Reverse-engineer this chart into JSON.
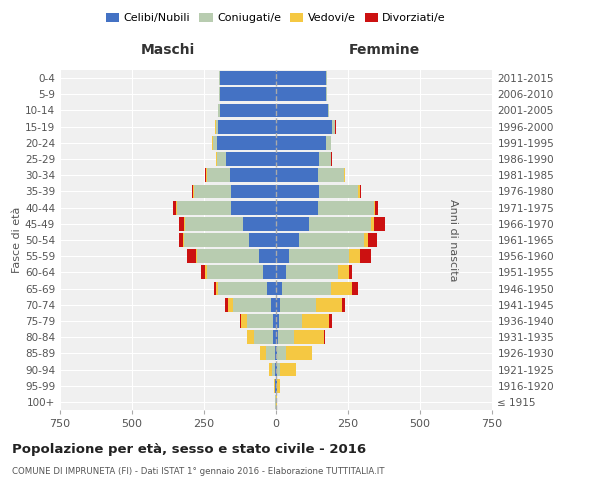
{
  "age_groups": [
    "100+",
    "95-99",
    "90-94",
    "85-89",
    "80-84",
    "75-79",
    "70-74",
    "65-69",
    "60-64",
    "55-59",
    "50-54",
    "45-49",
    "40-44",
    "35-39",
    "30-34",
    "25-29",
    "20-24",
    "15-19",
    "10-14",
    "5-9",
    "0-4"
  ],
  "birth_years": [
    "≤ 1915",
    "1916-1920",
    "1921-1925",
    "1926-1930",
    "1931-1935",
    "1936-1940",
    "1941-1945",
    "1946-1950",
    "1951-1955",
    "1956-1960",
    "1961-1965",
    "1966-1970",
    "1971-1975",
    "1976-1980",
    "1981-1985",
    "1986-1990",
    "1991-1995",
    "1996-2000",
    "2001-2005",
    "2006-2010",
    "2011-2015"
  ],
  "males": {
    "celibi": [
      1,
      2,
      3,
      5,
      10,
      12,
      18,
      30,
      45,
      60,
      95,
      115,
      155,
      155,
      160,
      175,
      205,
      200,
      195,
      195,
      195
    ],
    "coniugati": [
      1,
      3,
      10,
      30,
      65,
      90,
      130,
      170,
      195,
      215,
      225,
      200,
      190,
      130,
      80,
      30,
      15,
      10,
      5,
      3,
      2
    ],
    "vedovi": [
      0,
      2,
      10,
      20,
      25,
      18,
      20,
      10,
      5,
      3,
      2,
      3,
      2,
      2,
      2,
      2,
      1,
      1,
      0,
      0,
      0
    ],
    "divorziati": [
      0,
      0,
      1,
      1,
      2,
      5,
      8,
      5,
      15,
      30,
      15,
      18,
      10,
      5,
      5,
      2,
      1,
      1,
      0,
      0,
      0
    ]
  },
  "females": {
    "nubili": [
      1,
      2,
      5,
      5,
      8,
      10,
      15,
      20,
      35,
      45,
      80,
      115,
      145,
      150,
      145,
      150,
      175,
      195,
      180,
      175,
      175
    ],
    "coniugate": [
      0,
      2,
      10,
      30,
      55,
      80,
      125,
      170,
      180,
      210,
      225,
      215,
      195,
      135,
      90,
      40,
      15,
      10,
      5,
      3,
      2
    ],
    "vedove": [
      1,
      10,
      55,
      90,
      105,
      95,
      90,
      75,
      40,
      35,
      15,
      10,
      5,
      5,
      3,
      2,
      1,
      1,
      0,
      0,
      0
    ],
    "divorziate": [
      0,
      0,
      1,
      1,
      3,
      8,
      8,
      18,
      10,
      40,
      30,
      40,
      8,
      5,
      3,
      2,
      1,
      1,
      0,
      0,
      0
    ]
  },
  "colors": {
    "celibi_nubili": "#4472C4",
    "coniugati": "#B8CCB0",
    "vedovi": "#F5C842",
    "divorziati": "#CC1111"
  },
  "xlim": 750,
  "title": "Popolazione per età, sesso e stato civile - 2016",
  "subtitle": "COMUNE DI IMPRUNETA (FI) - Dati ISTAT 1° gennaio 2016 - Elaborazione TUTTITALIA.IT",
  "ylabel_left": "Fasce di età",
  "ylabel_right": "Anni di nascita",
  "xlabel_left": "Maschi",
  "xlabel_right": "Femmine",
  "background_color": "#ffffff",
  "plot_bg_color": "#f0f0f0",
  "grid_color": "#ffffff"
}
